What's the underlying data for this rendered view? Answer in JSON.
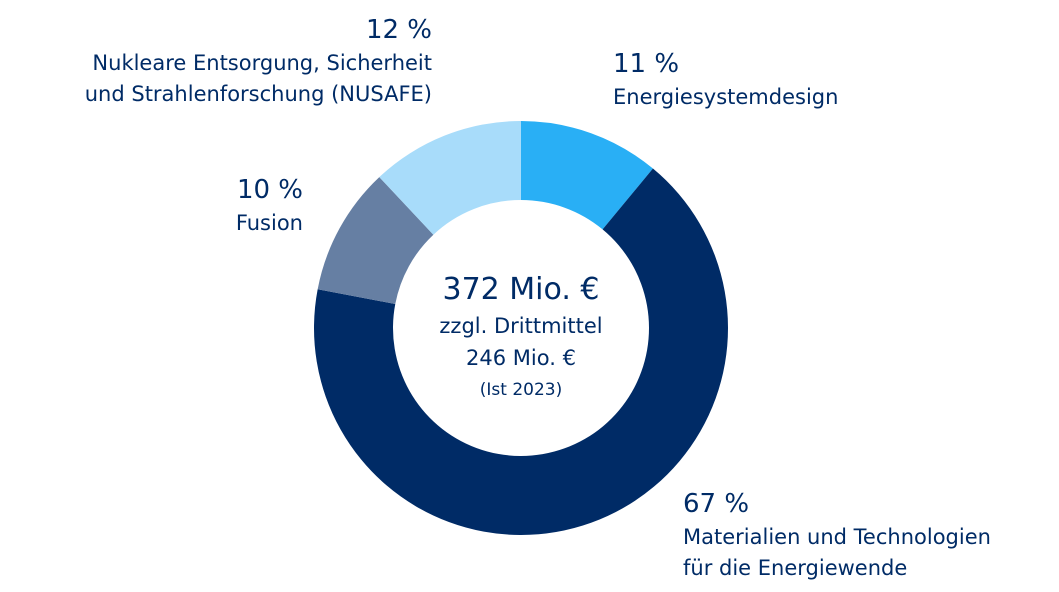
{
  "chart_data": {
    "type": "donut",
    "categories": [
      "Energiesystemdesign",
      "Materialien und Technologien\nfür die Energiewende",
      "Fusion",
      "Nukleare Entsorgung, Sicherheit\nund Strahlenforschung (NUSAFE)"
    ],
    "values": [
      11,
      67,
      10,
      12
    ],
    "value_labels": [
      "11 %",
      "67 %",
      "10 %",
      "12 %"
    ],
    "colors": [
      "#29aff5",
      "#002b66",
      "#667fa3",
      "#a8dcfa"
    ],
    "center_text": [
      "372 Mio. €",
      "zzgl. Drittmittel",
      "246 Mio. €",
      "(Ist 2023)"
    ]
  }
}
